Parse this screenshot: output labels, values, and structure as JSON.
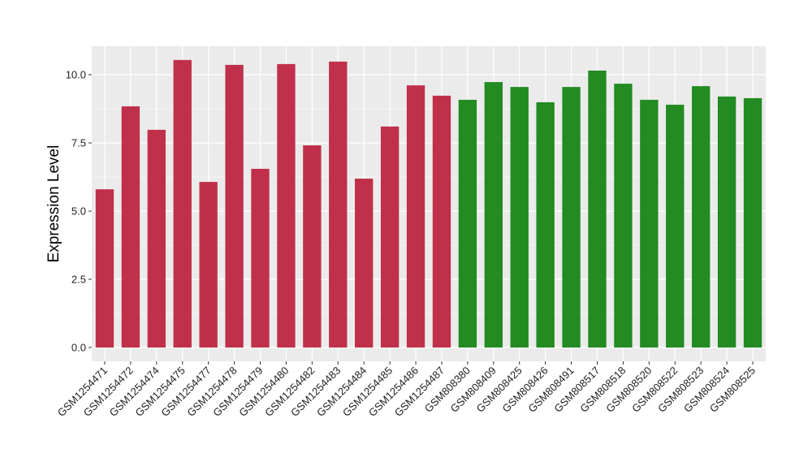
{
  "chart_data": {
    "type": "bar",
    "title": "",
    "xlabel": "",
    "ylabel": "Expression Level",
    "ylim": [
      -0.5,
      11
    ],
    "yticks": [
      "0.0",
      "2.5",
      "5.0",
      "7.5",
      "10.0"
    ],
    "grid": true,
    "legend": "none",
    "categories": [
      "GSM1254471",
      "GSM1254472",
      "GSM1254474",
      "GSM1254475",
      "GSM1254477",
      "GSM1254478",
      "GSM1254479",
      "GSM1254480",
      "GSM1254482",
      "GSM1254483",
      "GSM1254484",
      "GSM1254485",
      "GSM1254486",
      "GSM1254487",
      "GSM808380",
      "GSM808409",
      "GSM808425",
      "GSM808426",
      "GSM808491",
      "GSM808517",
      "GSM808518",
      "GSM808520",
      "GSM808522",
      "GSM808523",
      "GSM808524",
      "GSM808525"
    ],
    "values": [
      5.8,
      8.84,
      7.98,
      10.54,
      6.07,
      10.36,
      6.55,
      10.39,
      7.41,
      10.48,
      6.19,
      8.1,
      9.61,
      9.23,
      9.08,
      9.73,
      9.55,
      8.99,
      9.55,
      10.15,
      9.67,
      9.08,
      8.9,
      9.58,
      9.2,
      9.14
    ],
    "groups": [
      "red",
      "red",
      "red",
      "red",
      "red",
      "red",
      "red",
      "red",
      "red",
      "red",
      "red",
      "red",
      "red",
      "red",
      "green",
      "green",
      "green",
      "green",
      "green",
      "green",
      "green",
      "green",
      "green",
      "green",
      "green",
      "green"
    ],
    "colors": {
      "red": "#C0304A",
      "green": "#228B22",
      "panel": "#EBEBEB",
      "grid": "#FFFFFF"
    }
  }
}
